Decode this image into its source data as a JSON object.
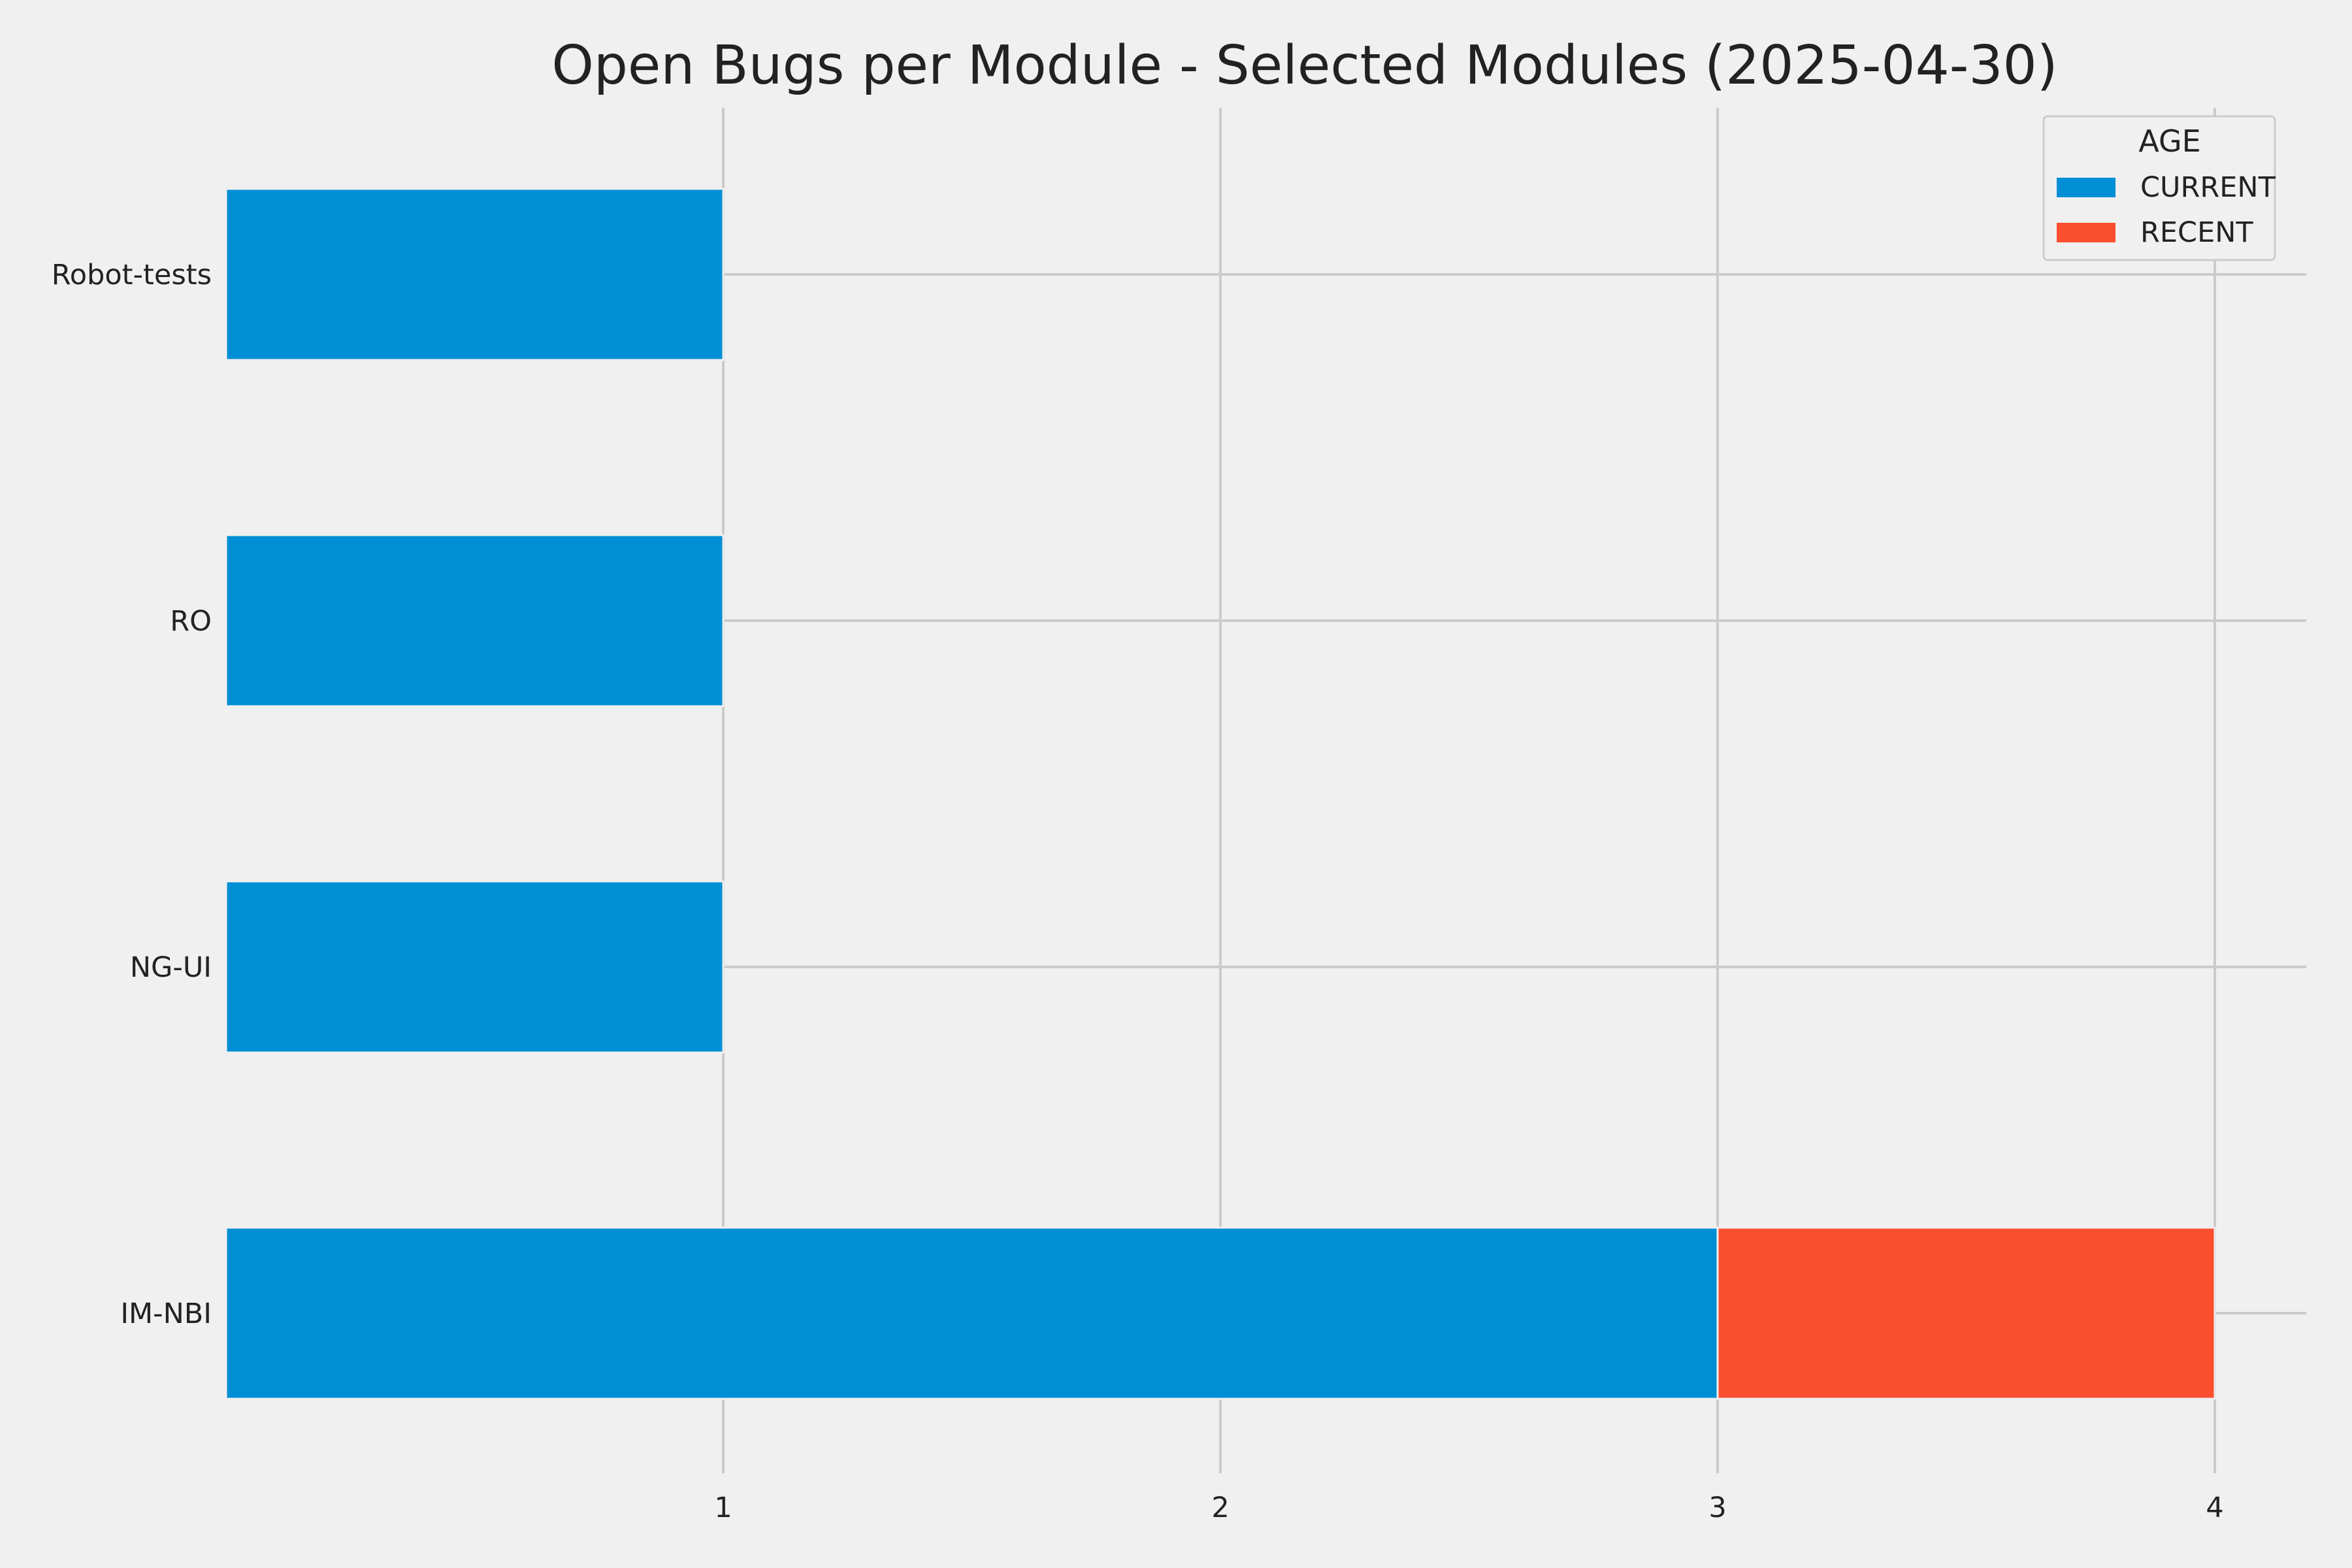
{
  "chart_data": {
    "type": "bar",
    "orientation": "horizontal",
    "stacked": true,
    "title": "Open Bugs per Module - Selected Modules (2025-04-30)",
    "xlabel": "",
    "ylabel": "",
    "categories": [
      "Robot-tests",
      "RO",
      "NG-UI",
      "IM-NBI"
    ],
    "series": [
      {
        "name": "CURRENT",
        "color": "#008fd5",
        "values": [
          1,
          1,
          1,
          3
        ]
      },
      {
        "name": "RECENT",
        "color": "#fc4f30",
        "values": [
          0,
          0,
          0,
          1
        ]
      }
    ],
    "xlim": [
      0,
      4.2
    ],
    "xticks": [
      1,
      2,
      3,
      4
    ],
    "grid": true,
    "legend": {
      "title": "AGE",
      "placement": "top-right"
    }
  }
}
